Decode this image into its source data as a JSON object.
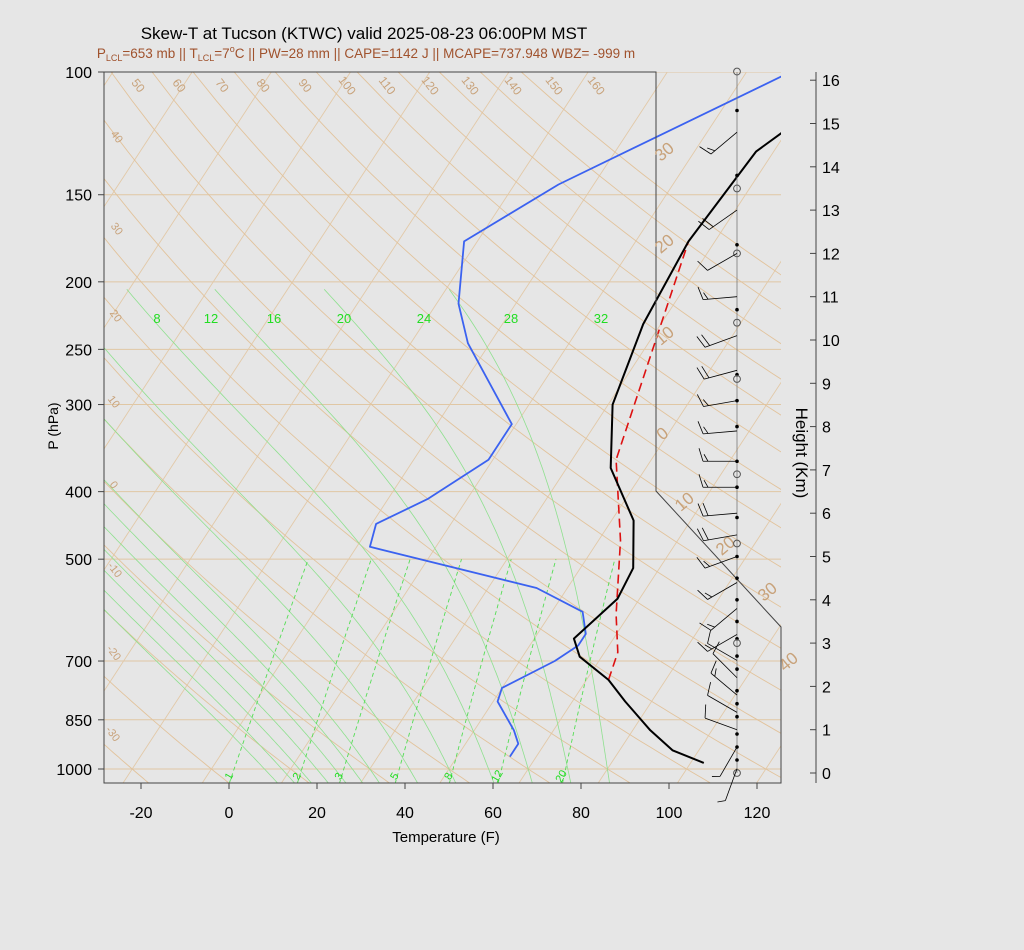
{
  "chart_data": {
    "type": "skew-t",
    "title": "Skew-T at Tucson (KTWC) valid 2025-08-23 06:00PM MST",
    "subtitle": {
      "plcl_pre": "P",
      "plcl_sub": "LCL",
      "plcl_val": "=653 mb || ",
      "tlcl_pre": "T",
      "tlcl_sub": "LCL",
      "tlcl_val": "=7",
      "deg": "o",
      "rest": "C || PW=28 mm || CAPE=1142 J || MCAPE=737.948 WBZ= -999 m"
    },
    "xlabel": "Temperature (F)",
    "ylabel": "P (hPa)",
    "height_label": "Height (Km)",
    "pressure_ticks": [
      100,
      150,
      200,
      250,
      300,
      400,
      500,
      700,
      850,
      1000
    ],
    "temperature_ticks": [
      -20,
      0,
      20,
      40,
      60,
      80,
      100,
      120
    ],
    "height_ticks": [
      0,
      1,
      2,
      3,
      4,
      5,
      6,
      7,
      8,
      9,
      10,
      11,
      12,
      13,
      14,
      15,
      16
    ],
    "mixing_ratio_labels": [
      "1",
      "2",
      "3",
      "5",
      "8",
      "12",
      "20"
    ],
    "moist_adiabat_labels": [
      "8",
      "12",
      "16",
      "20",
      "24",
      "28",
      "32"
    ],
    "dry_adiabat_labels_upper": [
      "50",
      "60",
      "70",
      "80",
      "90",
      "100",
      "110",
      "120",
      "130",
      "140",
      "150",
      "160"
    ],
    "dry_adiabat_labels_left": [
      "40",
      "30",
      "20",
      "10",
      "0",
      "-10",
      "-20",
      "-30"
    ],
    "dry_adiabat_labels_right": [
      "30",
      "20",
      "10",
      "0",
      "10",
      "20",
      "30",
      "40"
    ],
    "temperature_profile": {
      "name": "Temperature",
      "color": "#000000",
      "points": [
        [
          107,
          980
        ],
        [
          98,
          940
        ],
        [
          90,
          880
        ],
        [
          80,
          800
        ],
        [
          73,
          745
        ],
        [
          63,
          690
        ],
        [
          59,
          650
        ],
        [
          63,
          570
        ],
        [
          62,
          515
        ],
        [
          55,
          440
        ],
        [
          42,
          370
        ],
        [
          33,
          300
        ],
        [
          28,
          230
        ],
        [
          26,
          175
        ],
        [
          28,
          130
        ],
        [
          41,
          100
        ]
      ]
    },
    "dewpoint_profile": {
      "name": "Dewpoint",
      "color": "#3b62f0",
      "points": [
        [
          62,
          960
        ],
        [
          62,
          920
        ],
        [
          59,
          880
        ],
        [
          51,
          800
        ],
        [
          50,
          765
        ],
        [
          58,
          700
        ],
        [
          61,
          665
        ],
        [
          61,
          640
        ],
        [
          57,
          595
        ],
        [
          43,
          550
        ],
        [
          -1,
          480
        ],
        [
          -3,
          445
        ],
        [
          5,
          410
        ],
        [
          13,
          360
        ],
        [
          13,
          320
        ],
        [
          -9,
          245
        ],
        [
          -17,
          215
        ],
        [
          -25,
          175
        ],
        [
          -12,
          145
        ],
        [
          24,
          100
        ]
      ]
    },
    "parcel_profile": {
      "name": "Parcel",
      "color": "#dd1111",
      "points": [
        [
          73,
          745
        ],
        [
          71,
          680
        ],
        [
          65,
          600
        ],
        [
          55,
          470
        ],
        [
          42,
          360
        ],
        [
          26,
          175
        ]
      ]
    },
    "wind_barbs": [
      {
        "height_km": 0.1,
        "speed_kt": 5,
        "dir_deg": 200
      },
      {
        "height_km": 0.6,
        "speed_kt": 5,
        "dir_deg": 210
      },
      {
        "height_km": 1.0,
        "speed_kt": 10,
        "dir_deg": 290
      },
      {
        "height_km": 1.4,
        "speed_kt": 10,
        "dir_deg": 300
      },
      {
        "height_km": 1.8,
        "speed_kt": 15,
        "dir_deg": 310
      },
      {
        "height_km": 2.2,
        "speed_kt": 10,
        "dir_deg": 315
      },
      {
        "height_km": 2.6,
        "speed_kt": 10,
        "dir_deg": 300
      },
      {
        "height_km": 3.2,
        "speed_kt": 15,
        "dir_deg": 240
      },
      {
        "height_km": 3.8,
        "speed_kt": 15,
        "dir_deg": 230
      },
      {
        "height_km": 4.4,
        "speed_kt": 15,
        "dir_deg": 240
      },
      {
        "height_km": 5.0,
        "speed_kt": 15,
        "dir_deg": 250
      },
      {
        "height_km": 5.5,
        "speed_kt": 20,
        "dir_deg": 260
      },
      {
        "height_km": 6.0,
        "speed_kt": 20,
        "dir_deg": 265
      },
      {
        "height_km": 6.6,
        "speed_kt": 15,
        "dir_deg": 270
      },
      {
        "height_km": 7.2,
        "speed_kt": 15,
        "dir_deg": 270
      },
      {
        "height_km": 7.9,
        "speed_kt": 15,
        "dir_deg": 265
      },
      {
        "height_km": 8.6,
        "speed_kt": 15,
        "dir_deg": 260
      },
      {
        "height_km": 9.3,
        "speed_kt": 20,
        "dir_deg": 255
      },
      {
        "height_km": 10.1,
        "speed_kt": 20,
        "dir_deg": 250
      },
      {
        "height_km": 11.0,
        "speed_kt": 15,
        "dir_deg": 265
      },
      {
        "height_km": 12.0,
        "speed_kt": 10,
        "dir_deg": 240
      },
      {
        "height_km": 13.0,
        "speed_kt": 20,
        "dir_deg": 235
      },
      {
        "height_km": 14.8,
        "speed_kt": 15,
        "dir_deg": 230
      }
    ],
    "levels_hollow_km": [
      0.0,
      3.0,
      5.3,
      6.9,
      9.1,
      10.4,
      12.0,
      13.5,
      16.2
    ],
    "levels_solid_km": [
      0.3,
      0.6,
      0.9,
      1.3,
      1.6,
      1.9,
      2.4,
      2.7,
      3.1,
      3.5,
      4.0,
      4.5,
      5.0,
      5.9,
      6.6,
      7.2,
      8.0,
      8.6,
      9.2,
      10.7,
      12.2,
      13.8,
      15.3
    ]
  }
}
